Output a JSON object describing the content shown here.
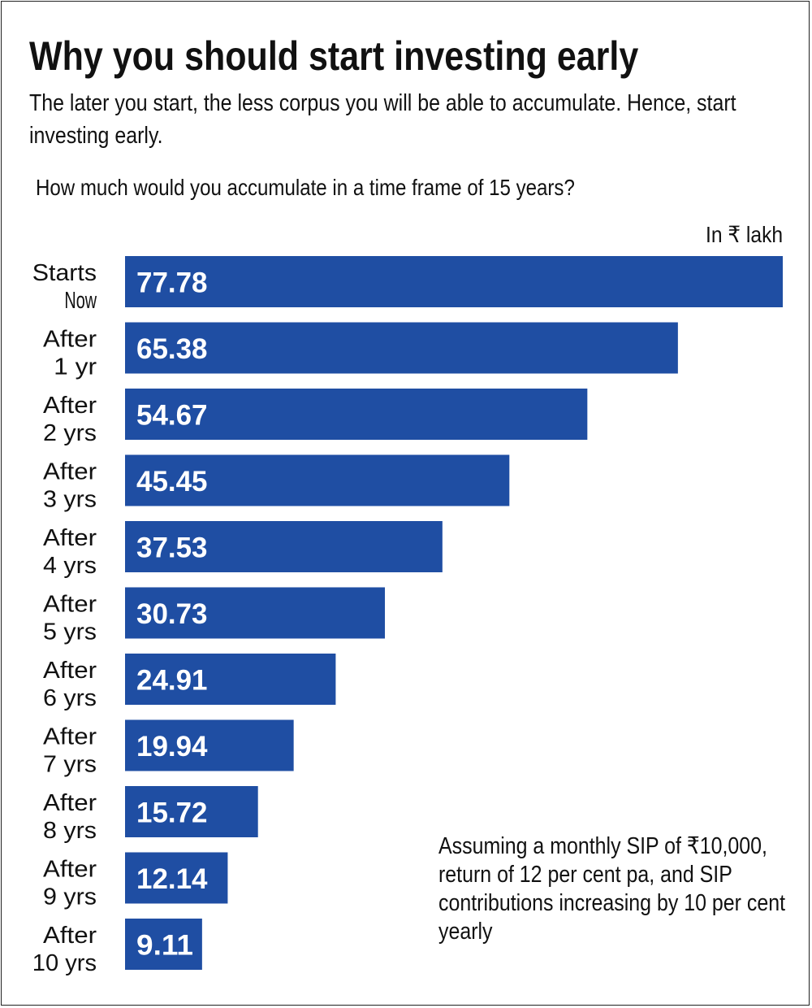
{
  "header": {
    "title": "Why you should start investing early",
    "subtitle": "The later you start, the less corpus you will be able to accumulate. Hence, start investing early."
  },
  "chart_data": {
    "type": "bar",
    "orientation": "horizontal",
    "title": "How much would you accumulate in a time frame of 15 years?",
    "unit_label": "In ₹ lakh",
    "categories": [
      [
        "Starts",
        "Now"
      ],
      [
        "After",
        "1 yr"
      ],
      [
        "After",
        "2 yrs"
      ],
      [
        "After",
        "3 yrs"
      ],
      [
        "After",
        "4 yrs"
      ],
      [
        "After",
        "5 yrs"
      ],
      [
        "After",
        "6 yrs"
      ],
      [
        "After",
        "7 yrs"
      ],
      [
        "After",
        "8 yrs"
      ],
      [
        "After",
        "9 yrs"
      ],
      [
        "After",
        "10 yrs"
      ]
    ],
    "values": [
      77.78,
      65.38,
      54.67,
      45.45,
      37.53,
      30.73,
      24.91,
      19.94,
      15.72,
      12.14,
      9.11
    ],
    "value_labels": [
      "77.78",
      "65.38",
      "54.67",
      "45.45",
      "37.53",
      "30.73",
      "24.91",
      "19.94",
      "15.72",
      "12.14",
      "9.11"
    ],
    "xlim": [
      0,
      77.78
    ],
    "bar_color": "#1f4ea3",
    "grid": false,
    "legend": "none"
  },
  "footnote": "Assuming a monthly SIP of ₹10,000, return of 12 per cent pa, and SIP contributions increasing by 10 per cent yearly"
}
